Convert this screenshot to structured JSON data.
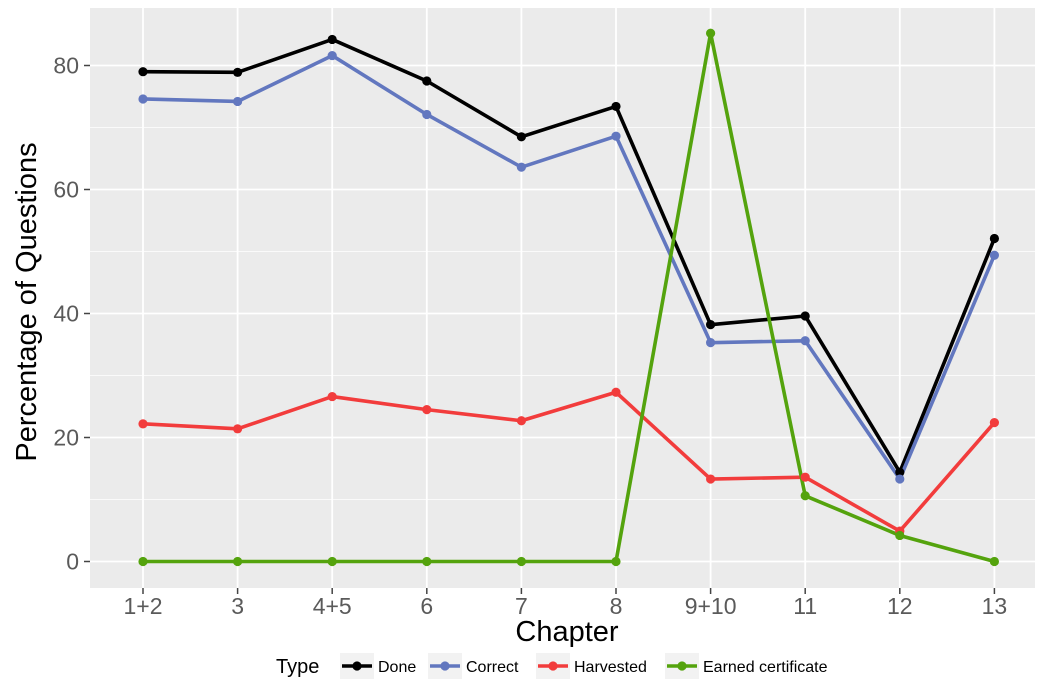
{
  "chart_data": {
    "type": "line",
    "title": "",
    "xlabel": "Chapter",
    "ylabel": "Percentage of Questions",
    "categories": [
      "1+2",
      "3",
      "4+5",
      "6",
      "7",
      "8",
      "9+10",
      "11",
      "12",
      "13"
    ],
    "ylim": [
      -4,
      89
    ],
    "yticks": [
      0,
      20,
      40,
      60,
      80
    ],
    "grid": true,
    "legend": {
      "title": "Type",
      "position": "bottom"
    },
    "series": [
      {
        "name": "Done",
        "color": "#000000",
        "values": [
          79.0,
          78.9,
          84.2,
          77.5,
          68.5,
          73.4,
          38.2,
          39.6,
          14.4,
          52.1
        ]
      },
      {
        "name": "Correct",
        "color": "#6277bf",
        "values": [
          74.6,
          74.2,
          81.6,
          72.1,
          63.6,
          68.6,
          35.3,
          35.6,
          13.3,
          49.4
        ]
      },
      {
        "name": "Harvested",
        "color": "#f23c3c",
        "values": [
          22.2,
          21.4,
          26.6,
          24.5,
          22.7,
          27.3,
          13.3,
          13.6,
          4.9,
          22.4
        ]
      },
      {
        "name": "Earned certificate",
        "color": "#54a30d",
        "values": [
          0,
          0,
          0,
          0,
          0,
          0,
          85.2,
          10.6,
          4.2,
          0
        ]
      }
    ]
  }
}
